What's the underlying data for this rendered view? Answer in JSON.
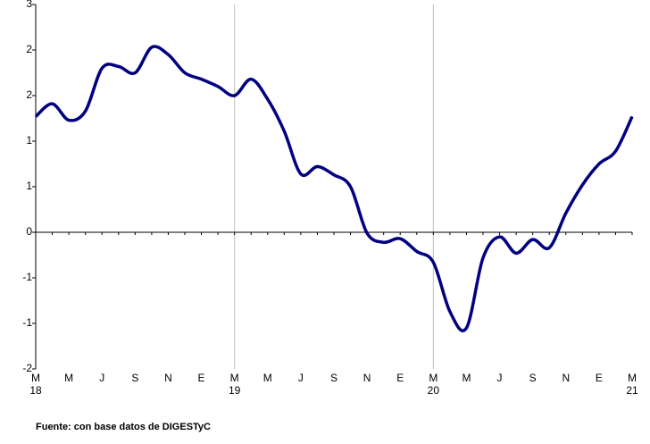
{
  "chart_data": {
    "type": "line",
    "categories": [
      "M",
      null,
      "M",
      null,
      "J",
      null,
      "S",
      null,
      "N",
      null,
      "E",
      null,
      "M",
      null,
      "M",
      null,
      "J",
      null,
      "S",
      null,
      "N",
      null,
      "E",
      null,
      "M",
      null,
      "M",
      null,
      "J",
      null,
      "S",
      null,
      "N",
      null,
      "E",
      null,
      "M"
    ],
    "category_years": [
      "18",
      null,
      null,
      null,
      null,
      null,
      null,
      null,
      null,
      null,
      null,
      null,
      "19",
      null,
      null,
      null,
      null,
      null,
      null,
      null,
      null,
      null,
      null,
      null,
      "20",
      null,
      null,
      null,
      null,
      null,
      null,
      null,
      null,
      null,
      null,
      null,
      "21"
    ],
    "series": [
      {
        "color": "#000080",
        "values": [
          1.27,
          1.41,
          1.23,
          1.33,
          1.8,
          1.82,
          1.75,
          2.03,
          1.95,
          1.75,
          1.68,
          1.6,
          1.5,
          1.68,
          1.46,
          1.11,
          0.64,
          0.72,
          0.63,
          0.5,
          -0.01,
          -0.11,
          -0.07,
          -0.21,
          -0.33,
          -0.87,
          -1.05,
          -0.28,
          -0.05,
          -0.23,
          -0.08,
          -0.17,
          0.21,
          0.52,
          0.75,
          0.89,
          1.27
        ]
      }
    ],
    "ylim": [
      -1.5,
      2.5
    ],
    "yticks": [
      {
        "value": 2.5,
        "label": "3"
      },
      2,
      {
        "value": 1.5,
        "label": "2"
      },
      1,
      {
        "value": 0.5,
        "label": "1"
      },
      0,
      {
        "value": -0.5,
        "label": "-1"
      },
      -1,
      {
        "value": -1.5,
        "label": "-2"
      }
    ],
    "xgrid_at": [
      12,
      24
    ],
    "note": "Fuente: con base datos de DIGESTyC"
  }
}
